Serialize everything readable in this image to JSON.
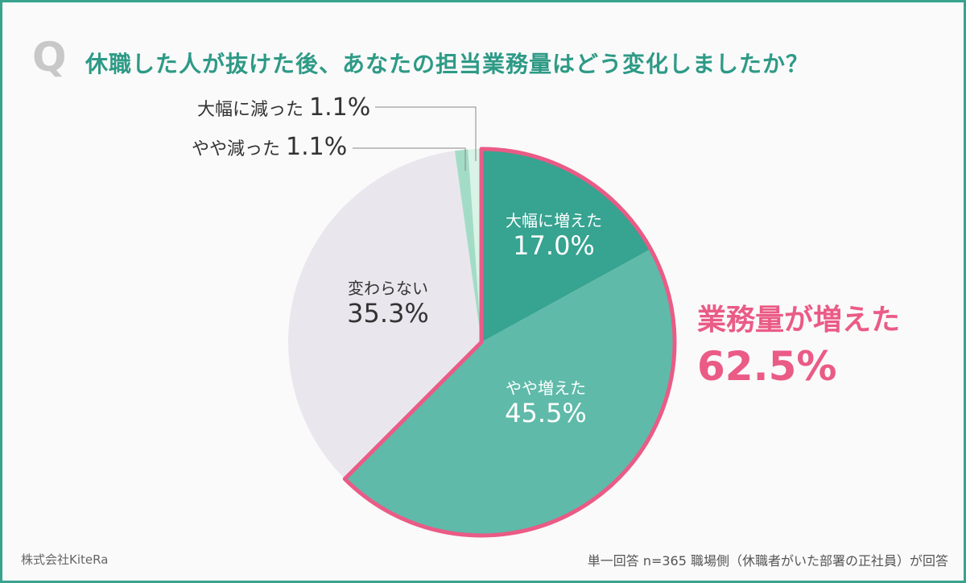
{
  "question_mark": "Q",
  "title": "休職した人が抜けた後、あなたの担当業務量はどう変化しましたか？",
  "chart_data": {
    "type": "pie",
    "start": "12 o'clock, clockwise",
    "slices": [
      {
        "label": "大幅に増えた",
        "value": 17.0,
        "value_label": "17.0%",
        "color": "#37a391"
      },
      {
        "label": "やや増えた",
        "value": 45.5,
        "value_label": "45.5%",
        "color": "#5fbaa9"
      },
      {
        "label": "変わらない",
        "value": 35.3,
        "value_label": "35.3%",
        "color": "#e9e7ed"
      },
      {
        "label": "やや減った",
        "value": 1.1,
        "value_label": "1.1%",
        "color": "#a3dcc6"
      },
      {
        "label": "大幅に減った",
        "value": 1.1,
        "value_label": "1.1%",
        "color": "#d9f3e6"
      }
    ],
    "highlight": {
      "label": "業務量が増えた",
      "value": 62.5,
      "value_label": "62.5%",
      "color": "#ea5b86",
      "slices": [
        "大幅に増えた",
        "やや増えた"
      ]
    }
  },
  "brand": "株式会社KiteRa",
  "note": "単一回答 n=365 職場側（休職者がいた部署の正社員）が回答",
  "colors": {
    "border": "#3aa38f",
    "title": "#2e9a86"
  }
}
